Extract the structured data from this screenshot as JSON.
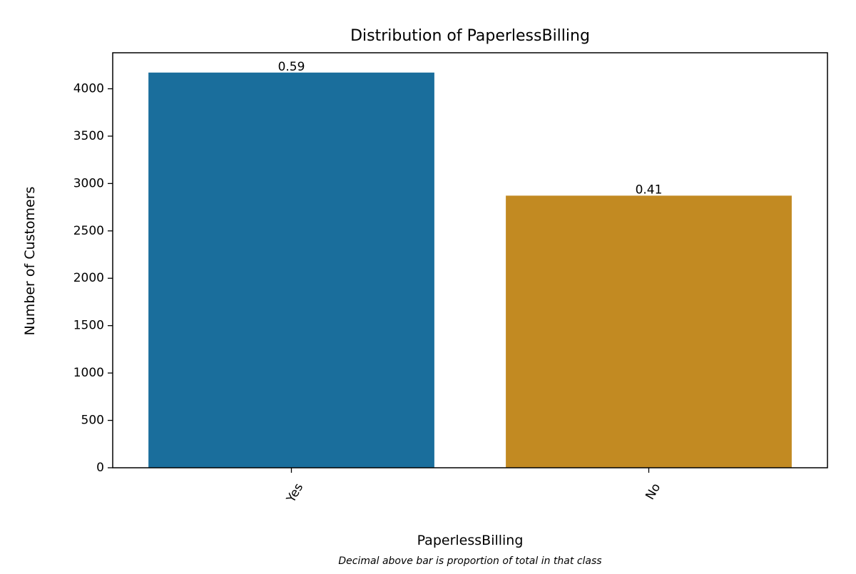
{
  "chart_data": {
    "type": "bar",
    "title": "Distribution of PaperlessBilling",
    "xlabel": "PaperlessBilling",
    "ylabel": "Number of Customers",
    "caption": "Decimal above bar is proportion of total in that class",
    "categories": [
      "Yes",
      "No"
    ],
    "values": [
      4171,
      2872
    ],
    "data_labels": [
      "0.59",
      "0.41"
    ],
    "colors": [
      "#1a6e9c",
      "#c28a22"
    ],
    "ylim": [
      0,
      4380
    ],
    "yticks": [
      0,
      500,
      1000,
      1500,
      2000,
      2500,
      3000,
      3500,
      4000
    ],
    "grid": false,
    "legend": "none"
  }
}
